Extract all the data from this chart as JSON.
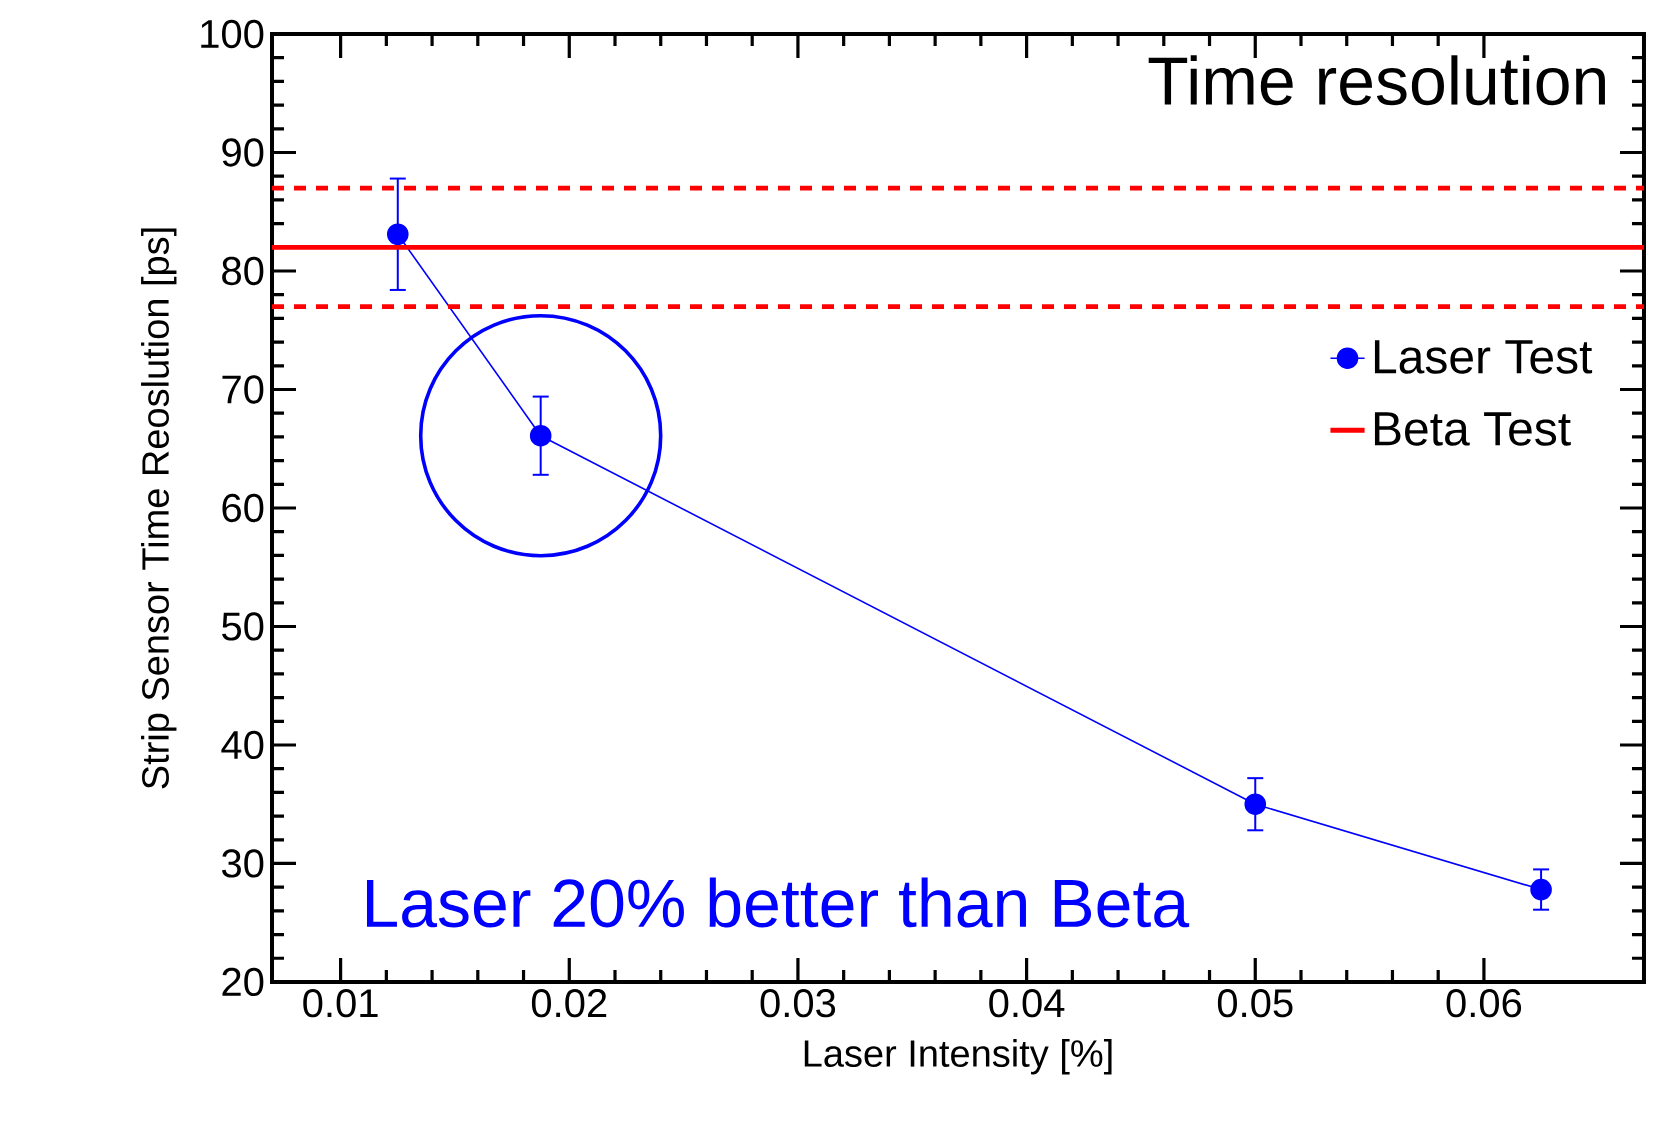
{
  "chart_data": {
    "type": "line",
    "title": "Time resolution",
    "xlabel": "Laser Intensity [%]",
    "ylabel": "Strip Sensor Time Reoslution [ps]",
    "x": [
      0.0125,
      0.01875,
      0.05,
      0.0625
    ],
    "series": [
      {
        "name": "Laser Test",
        "color": "#0000ff",
        "values": [
          83.1,
          66.1,
          35.0,
          27.8
        ],
        "errors": [
          4.7,
          3.3,
          2.2,
          1.7
        ]
      }
    ],
    "marker": "circle",
    "ref_lines": [
      {
        "axis": "y",
        "value": 82,
        "label": "Beta Test",
        "color": "#ff0000",
        "line_style": "solid"
      },
      {
        "axis": "y",
        "value": 87,
        "color": "#ff0000",
        "line_style": "dashed"
      },
      {
        "axis": "y",
        "value": 77,
        "color": "#ff0000",
        "line_style": "dashed"
      }
    ],
    "annotations": [
      "Laser 20% better than Beta"
    ],
    "xlim": [
      0.007,
      0.067
    ],
    "ylim": [
      20,
      100
    ],
    "xticks": [
      0.01,
      0.02,
      0.03,
      0.04,
      0.05,
      0.06
    ],
    "yticks": [
      20,
      30,
      40,
      50,
      60,
      70,
      80,
      90,
      100
    ],
    "grid": false,
    "legend": "right"
  }
}
